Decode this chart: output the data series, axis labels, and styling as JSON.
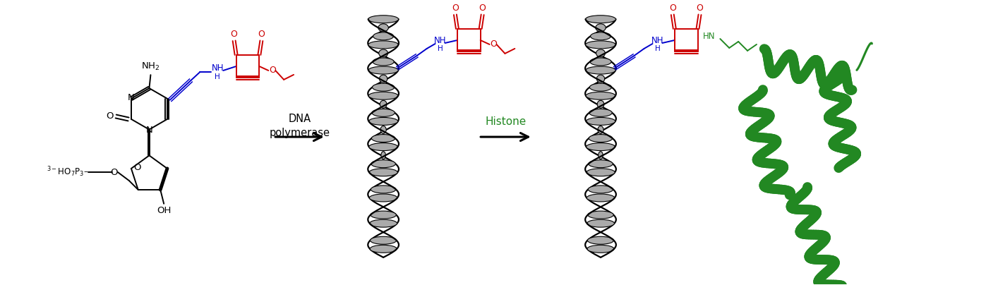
{
  "bg_color": "#ffffff",
  "black": "#000000",
  "red": "#cc0000",
  "blue": "#0000cc",
  "green": "#228822",
  "arrow1_line1": "DNA",
  "arrow1_line2": "polymerase",
  "arrow2_label": "Histone",
  "fs_main": 9.5,
  "fs_small": 8.5,
  "fs_label": 10.5
}
